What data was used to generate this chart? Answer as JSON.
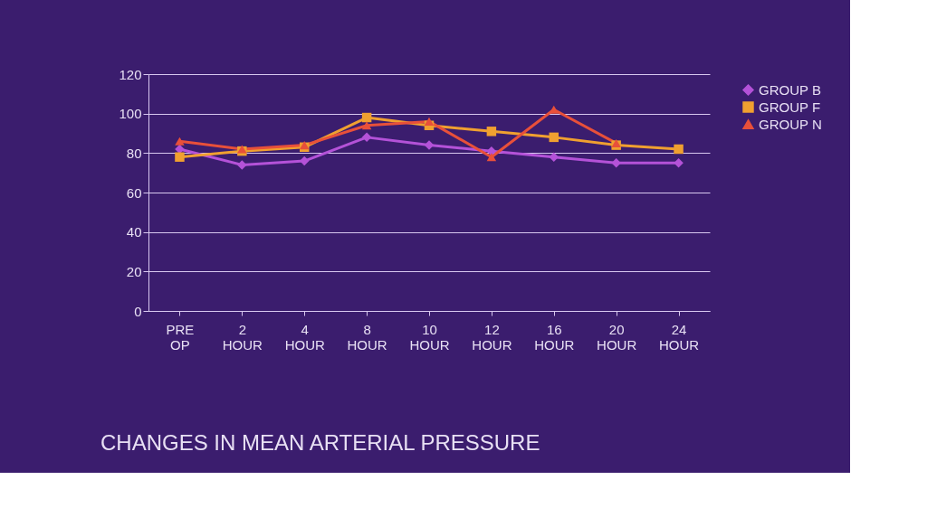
{
  "chart_data": {
    "type": "line",
    "title": "CHANGES IN MEAN ARTERIAL PRESSURE",
    "categories": [
      "PRE OP",
      "2 HOUR",
      "4 HOUR",
      "8 HOUR",
      "10 HOUR",
      "12 HOUR",
      "16 HOUR",
      "20 HOUR",
      "24 HOUR"
    ],
    "series": [
      {
        "name": "GROUP B",
        "color": "#b452d8",
        "marker": "diamond",
        "values": [
          82,
          74,
          76,
          88,
          84,
          81,
          78,
          75,
          75
        ]
      },
      {
        "name": "GROUP F",
        "color": "#f0a030",
        "marker": "square",
        "values": [
          78,
          81,
          83,
          98,
          94,
          91,
          88,
          84,
          82
        ]
      },
      {
        "name": "GROUP N",
        "color": "#e8503a",
        "marker": "triangle",
        "values": [
          86,
          82,
          84,
          94,
          96,
          78,
          102,
          85,
          null
        ]
      }
    ],
    "ylim": [
      0,
      120
    ],
    "yticks": [
      0,
      20,
      40,
      60,
      80,
      100,
      120
    ],
    "grid": "y",
    "legend": "right"
  }
}
